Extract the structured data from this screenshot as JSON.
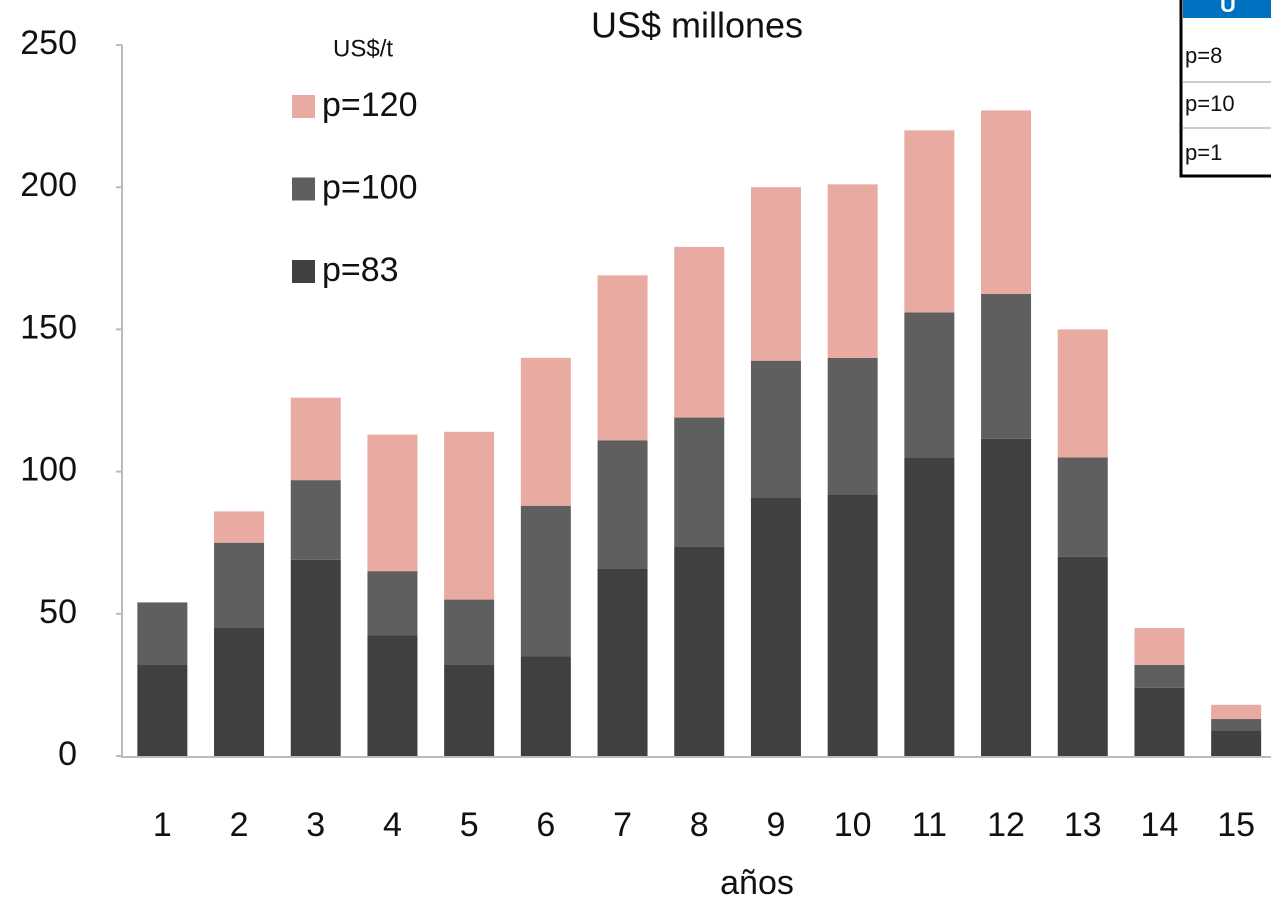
{
  "chart_data": {
    "type": "stacked_bar",
    "title": "US$ millones",
    "legend_title": "US$/t",
    "x_label": "años",
    "categories": [
      "1",
      "2",
      "3",
      "4",
      "5",
      "6",
      "7",
      "8",
      "9",
      "10",
      "11",
      "12",
      "13",
      "14",
      "15"
    ],
    "series": [
      {
        "name": "p=83",
        "color": "#404040",
        "values": [
          32,
          45,
          69,
          42.5,
          32,
          35,
          66,
          73.5,
          91,
          92,
          105,
          111.5,
          70,
          24,
          9
        ]
      },
      {
        "name": "p=100",
        "color": "#5f5f5f",
        "values": [
          22,
          30,
          28,
          22.5,
          23,
          53,
          45,
          45.5,
          48,
          48,
          51,
          51,
          35,
          8,
          4
        ]
      },
      {
        "name": "p=120",
        "color": "#e8aaa1",
        "values": [
          0,
          11,
          29,
          48,
          59,
          52,
          58,
          60,
          61,
          61,
          64,
          64.5,
          45,
          13,
          5
        ]
      }
    ],
    "ylim": [
      0,
      250
    ],
    "yticks": [
      0,
      50,
      100,
      150,
      200,
      250
    ],
    "grid": false,
    "legend_position": "upper-left"
  },
  "inset_table": {
    "header": "U",
    "rows": [
      "p=8",
      "p=10",
      "p=1"
    ]
  }
}
